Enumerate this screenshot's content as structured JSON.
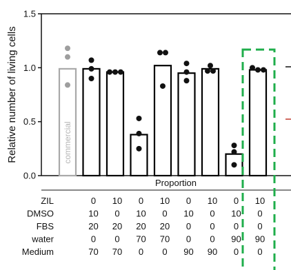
{
  "chart_data": {
    "type": "bar",
    "ylabel": "Relative number of living cells",
    "xlabel": "Proportion",
    "ylim": [
      0,
      1.5
    ],
    "yticks": [
      "0.0",
      "0.5",
      "1.0",
      "1.5"
    ],
    "commercial_label": "commercial",
    "colors": {
      "commercial": "#a9a9a9",
      "bar": "#000000",
      "highlight": "#1fae4b",
      "partial_line": "#c0392b"
    },
    "bars": [
      {
        "value": 0.99,
        "points": [
          1.18,
          1.1,
          0.84
        ],
        "style": "commercial"
      },
      {
        "value": 0.99,
        "points": [
          1.07,
          0.99,
          0.9
        ],
        "style": "normal"
      },
      {
        "value": 0.96,
        "points": [
          0.96,
          0.96,
          0.96
        ],
        "style": "normal"
      },
      {
        "value": 0.38,
        "points": [
          0.53,
          0.39,
          0.25
        ],
        "style": "normal"
      },
      {
        "value": 1.02,
        "points": [
          1.14,
          1.14,
          0.83
        ],
        "style": "normal"
      },
      {
        "value": 0.95,
        "points": [
          1.04,
          0.96,
          0.88
        ],
        "style": "normal"
      },
      {
        "value": 0.99,
        "points": [
          1.02,
          0.97,
          0.97
        ],
        "style": "normal"
      },
      {
        "value": 0.2,
        "points": [
          0.28,
          0.22,
          0.1
        ],
        "style": "normal"
      },
      {
        "value": 0.98,
        "points": [
          1.0,
          0.98,
          0.98
        ],
        "style": "highlighted"
      }
    ],
    "conditions": [
      {
        "label": "ZIL",
        "values": [
          "",
          "0",
          "10",
          "0",
          "10",
          "0",
          "10",
          "0",
          "10"
        ]
      },
      {
        "label": "DMSO",
        "values": [
          "",
          "10",
          "0",
          "10",
          "0",
          "10",
          "0",
          "10",
          "0"
        ]
      },
      {
        "label": "FBS",
        "values": [
          "",
          "20",
          "20",
          "20",
          "20",
          "0",
          "0",
          "0",
          "0"
        ]
      },
      {
        "label": "water",
        "values": [
          "",
          "0",
          "0",
          "70",
          "70",
          "0",
          "0",
          "90",
          "90"
        ]
      },
      {
        "label": "Medium",
        "values": [
          "",
          "70",
          "70",
          "0",
          "0",
          "90",
          "90",
          "0",
          "0"
        ]
      }
    ]
  }
}
